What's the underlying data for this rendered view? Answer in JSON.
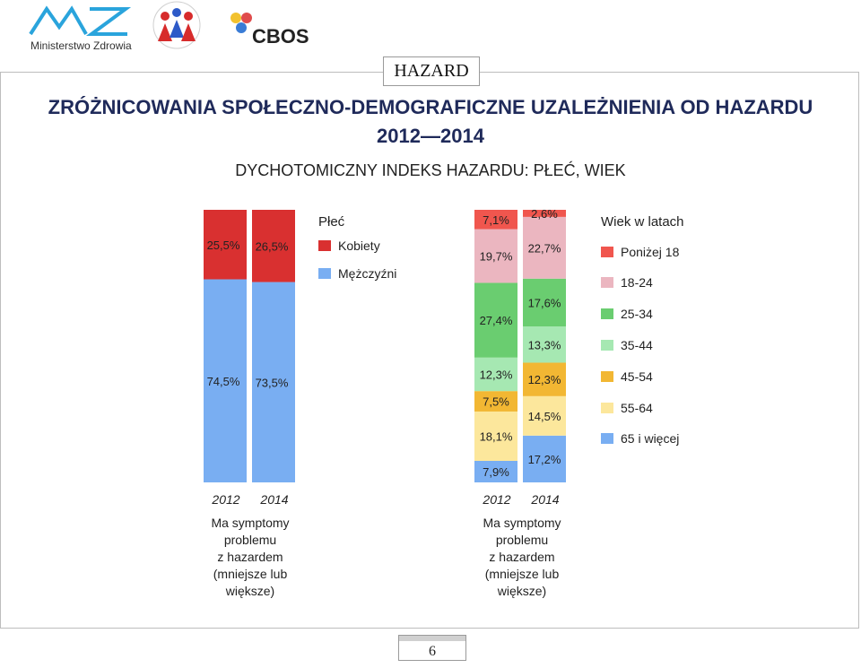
{
  "logos": {
    "ministry": "Ministerstwo Zdrowia",
    "cbos": "CBOS"
  },
  "tag": "HAZARD",
  "title_line1": "ZRÓŻNICOWANIA SPOŁECZNO-DEMOGRAFICZNE UZALEŻNIENIA OD HAZARDU",
  "title_line2": "2012—2014",
  "subtitle": "DYCHOTOMICZNY INDEKS HAZARDU: PŁEĆ, WIEK",
  "page_number": "6",
  "colors": {
    "kobiety": "#d93030",
    "mezczyzni": "#79aef2",
    "ponizej18": "#f0564e",
    "18-24": "#ebb6c0",
    "25-34": "#6acd70",
    "35-44": "#a6e8b2",
    "45-54": "#f2b733",
    "55-64": "#fce79c",
    "65plus": "#79aef2"
  },
  "chart_data": [
    {
      "type": "bar",
      "stacked": true,
      "normalized": true,
      "legend_title": "Płeć",
      "categories": [
        "2012",
        "2014"
      ],
      "series": [
        {
          "name": "Mężczyźni",
          "values": [
            74.5,
            73.5
          ],
          "labels": [
            "74,5%",
            "73,5%"
          ]
        },
        {
          "name": "Kobiety",
          "values": [
            25.5,
            26.5
          ],
          "labels": [
            "25,5%",
            "26,5%"
          ]
        }
      ],
      "xcaption": "Ma symptomy problemu z hazardem (mniejsze lub większe)",
      "legend_placement": "right"
    },
    {
      "type": "bar",
      "stacked": true,
      "normalized": true,
      "legend_title": "Wiek w latach",
      "categories": [
        "2012",
        "2014"
      ],
      "series": [
        {
          "name": "65 i więcej",
          "values": [
            7.9,
            17.2
          ],
          "labels": [
            "7,9%",
            "17,2%"
          ]
        },
        {
          "name": "55-64",
          "values": [
            18.1,
            14.5
          ],
          "labels": [
            "18,1%",
            "14,5%"
          ]
        },
        {
          "name": "45-54",
          "values": [
            7.5,
            12.3
          ],
          "labels": [
            "7,5%",
            "12,3%"
          ]
        },
        {
          "name": "35-44",
          "values": [
            12.3,
            13.3
          ],
          "labels": [
            "12,3%",
            "13,3%"
          ]
        },
        {
          "name": "25-34",
          "values": [
            27.4,
            17.6
          ],
          "labels": [
            "27,4%",
            "17,6%"
          ]
        },
        {
          "name": "18-24",
          "values": [
            19.7,
            22.7
          ],
          "labels": [
            "19,7%",
            "22,7%"
          ]
        },
        {
          "name": "Poniżej 18",
          "values": [
            7.1,
            2.6
          ],
          "labels": [
            "7,1%",
            "2,6%"
          ]
        }
      ],
      "xcaption": "Ma symptomy problemu z hazardem (mniejsze lub większe)",
      "legend_placement": "right"
    }
  ]
}
